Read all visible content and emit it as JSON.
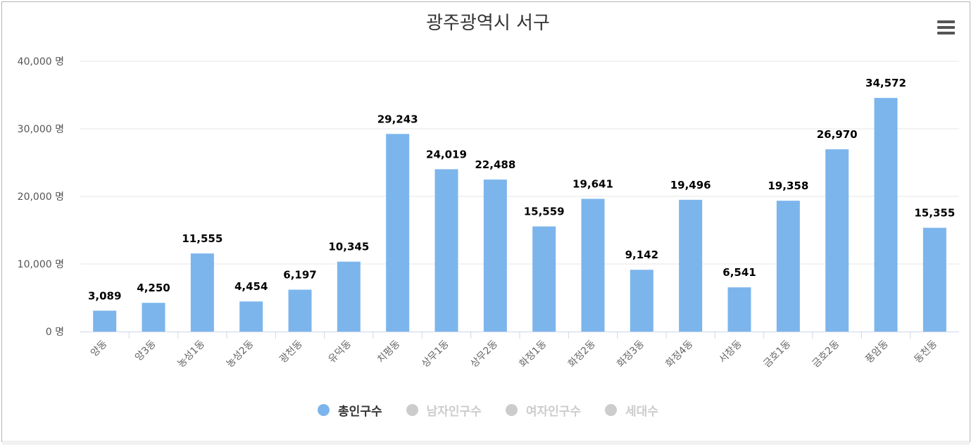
{
  "chart_data": {
    "type": "bar",
    "title": "광주광역시 서구",
    "categories": [
      "양동",
      "양3동",
      "농성1동",
      "농성2동",
      "광천동",
      "유덕동",
      "치평동",
      "상무1동",
      "상무2동",
      "화정1동",
      "화정2동",
      "화정3동",
      "화정4동",
      "서창동",
      "금호1동",
      "금호2동",
      "풍암동",
      "동천동"
    ],
    "series": [
      {
        "name": "총인구수",
        "color": "#7cb5ec",
        "visible": true,
        "values": [
          3089,
          4250,
          11555,
          4454,
          6197,
          10345,
          29243,
          24019,
          22488,
          15559,
          19641,
          9142,
          19496,
          6541,
          19358,
          26970,
          34572,
          15355
        ]
      },
      {
        "name": "남자인구수",
        "color": "#cccccc",
        "visible": false
      },
      {
        "name": "여자인구수",
        "color": "#cccccc",
        "visible": false
      },
      {
        "name": "세대수",
        "color": "#cccccc",
        "visible": false
      }
    ],
    "data_labels": [
      "3,089",
      "4,250",
      "11,555",
      "4,454",
      "6,197",
      "10,345",
      "29,243",
      "24,019",
      "22,488",
      "15,559",
      "19,641",
      "9,142",
      "19,496",
      "6,541",
      "19,358",
      "26,970",
      "34,572",
      "15,355"
    ],
    "ylim": [
      0,
      40000
    ],
    "yticks": [
      0,
      10000,
      20000,
      30000,
      40000
    ],
    "ytick_labels": [
      "0 명",
      "10,000 명",
      "20,000 명",
      "30,000 명",
      "40,000 명"
    ],
    "grid": true,
    "legend_position": "bottom-center"
  },
  "toolbar": {
    "menu_icon": "hamburger-menu-icon"
  }
}
